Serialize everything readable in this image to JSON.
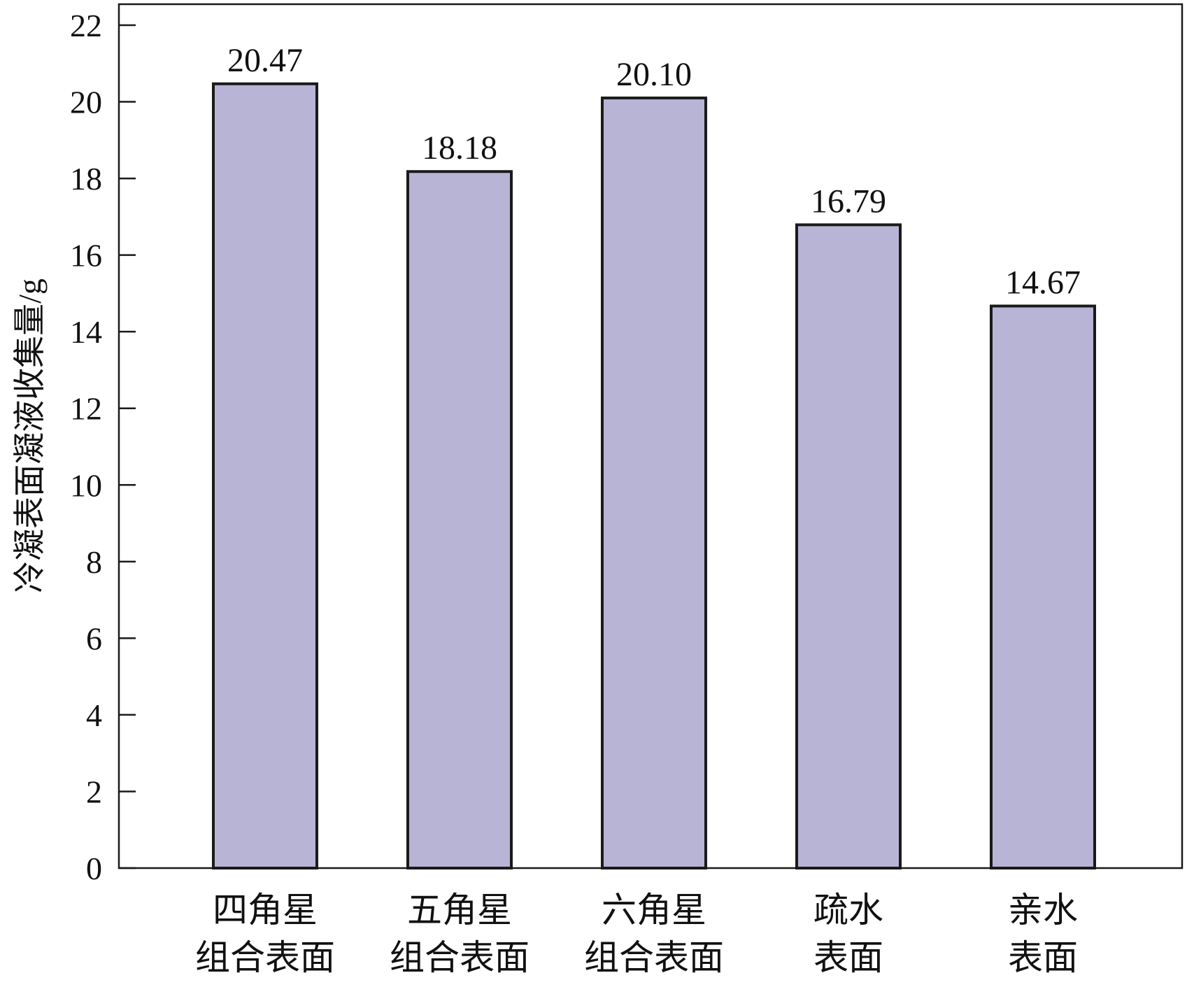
{
  "chart_data": {
    "type": "bar",
    "categories": [
      [
        "四角星",
        "组合表面"
      ],
      [
        "五角星",
        "组合表面"
      ],
      [
        "六角星",
        "组合表面"
      ],
      [
        "疏水",
        "表面"
      ],
      [
        "亲水",
        "表面"
      ]
    ],
    "values": [
      20.47,
      18.18,
      20.1,
      16.79,
      14.67
    ],
    "value_labels": [
      "20.47",
      "18.18",
      "20.10",
      "16.79",
      "14.67"
    ],
    "ylabel": "冷凝表面凝液收集量/g",
    "xlabel": "",
    "ylim": [
      0,
      22
    ],
    "yticks": [
      0,
      2,
      4,
      6,
      8,
      10,
      12,
      14,
      16,
      18,
      20,
      22
    ],
    "grid": false,
    "legend": "none",
    "colors": {
      "bar_fill": "#b8b4d6",
      "bar_stroke": "#1a1a1a",
      "axis": "#1a1a1a"
    }
  }
}
